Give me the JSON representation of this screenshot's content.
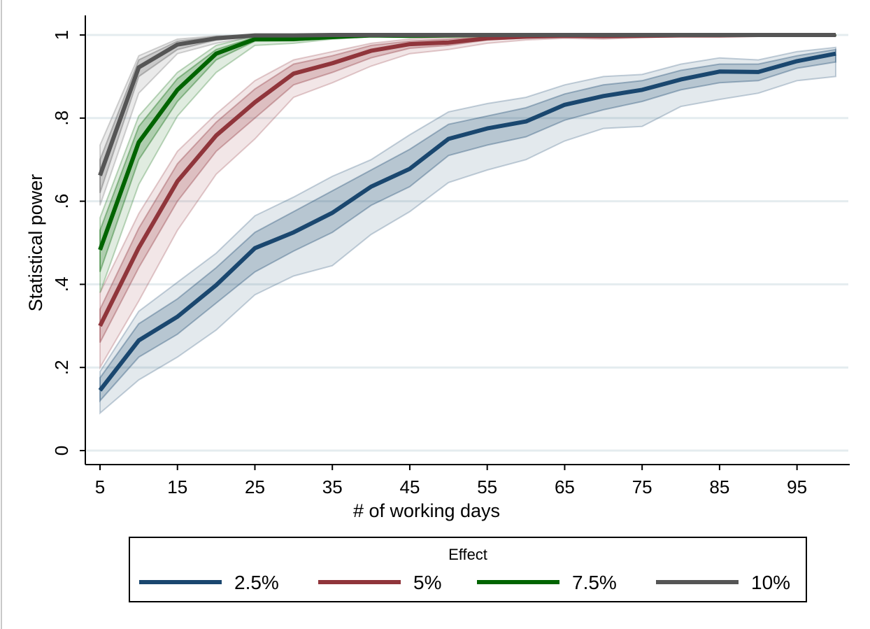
{
  "chart_data": {
    "type": "line",
    "xlabel": "# of working days",
    "ylabel": "Statistical power",
    "xlim": [
      5,
      100
    ],
    "ylim": [
      0,
      1
    ],
    "x_ticks": [
      5,
      15,
      25,
      35,
      45,
      55,
      65,
      75,
      85,
      95
    ],
    "x_tick_labels": [
      "5",
      "15",
      "25",
      "35",
      "45",
      "55",
      "65",
      "75",
      "85",
      "95"
    ],
    "y_ticks": [
      0,
      0.2,
      0.4,
      0.6,
      0.8,
      1
    ],
    "y_tick_labels": [
      "0",
      ".2",
      ".4",
      ".6",
      ".8",
      "1"
    ],
    "grid": true,
    "legend": {
      "title": "Effect",
      "position": "bottom"
    },
    "x": [
      5,
      10,
      15,
      20,
      25,
      30,
      35,
      40,
      45,
      50,
      55,
      60,
      65,
      70,
      75,
      80,
      85,
      90,
      95,
      100
    ],
    "series": [
      {
        "name": "2.5%",
        "color": "#1a476f",
        "values": [
          0.145,
          0.265,
          0.322,
          0.398,
          0.487,
          0.525,
          0.572,
          0.635,
          0.678,
          0.75,
          0.775,
          0.792,
          0.832,
          0.853,
          0.868,
          0.893,
          0.912,
          0.911,
          0.937,
          0.955
        ],
        "inner_lower": [
          0.12,
          0.225,
          0.28,
          0.355,
          0.43,
          0.48,
          0.525,
          0.59,
          0.635,
          0.71,
          0.735,
          0.755,
          0.795,
          0.82,
          0.84,
          0.868,
          0.885,
          0.89,
          0.92,
          0.935
        ],
        "inner_upper": [
          0.175,
          0.305,
          0.365,
          0.44,
          0.525,
          0.575,
          0.625,
          0.675,
          0.725,
          0.785,
          0.805,
          0.825,
          0.858,
          0.88,
          0.89,
          0.915,
          0.93,
          0.93,
          0.95,
          0.965
        ],
        "outer_lower": [
          0.09,
          0.17,
          0.225,
          0.29,
          0.375,
          0.42,
          0.445,
          0.52,
          0.575,
          0.645,
          0.675,
          0.7,
          0.745,
          0.775,
          0.78,
          0.828,
          0.845,
          0.86,
          0.89,
          0.9
        ],
        "outer_upper": [
          0.19,
          0.335,
          0.405,
          0.475,
          0.565,
          0.61,
          0.66,
          0.7,
          0.76,
          0.815,
          0.835,
          0.85,
          0.88,
          0.9,
          0.905,
          0.93,
          0.945,
          0.94,
          0.96,
          0.97
        ]
      },
      {
        "name": "5%",
        "color": "#90353b",
        "values": [
          0.3,
          0.488,
          0.648,
          0.758,
          0.838,
          0.907,
          0.932,
          0.962,
          0.978,
          0.982,
          0.992,
          0.996,
          0.998,
          0.997,
          0.998,
          0.999,
          0.999,
          1.0,
          1.0,
          1.0
        ],
        "inner_lower": [
          0.26,
          0.44,
          0.6,
          0.72,
          0.8,
          0.88,
          0.91,
          0.945,
          0.968,
          0.975,
          0.988,
          0.993,
          0.996,
          0.995,
          0.997,
          0.998,
          0.998,
          0.999,
          0.999,
          0.999
        ],
        "inner_upper": [
          0.34,
          0.535,
          0.69,
          0.79,
          0.87,
          0.93,
          0.95,
          0.975,
          0.985,
          0.99,
          0.996,
          0.998,
          0.999,
          0.999,
          0.999,
          1.0,
          1.0,
          1.0,
          1.0,
          1.0
        ],
        "outer_lower": [
          0.2,
          0.36,
          0.53,
          0.665,
          0.75,
          0.85,
          0.885,
          0.925,
          0.955,
          0.965,
          0.98,
          0.988,
          0.992,
          0.99,
          0.994,
          0.996,
          0.996,
          0.997,
          0.998,
          0.998
        ],
        "outer_upper": [
          0.38,
          0.57,
          0.72,
          0.81,
          0.89,
          0.94,
          0.96,
          0.98,
          0.99,
          0.995,
          0.998,
          1.0,
          1.0,
          1.0,
          1.0,
          1.0,
          1.0,
          1.0,
          1.0,
          1.0
        ]
      },
      {
        "name": "7.5%",
        "color": "#006400",
        "values": [
          0.483,
          0.742,
          0.868,
          0.955,
          0.99,
          0.99,
          0.995,
          0.999,
          0.998,
          0.999,
          1.0,
          1.0,
          1.0,
          1.0,
          1.0,
          1.0,
          1.0,
          1.0,
          1.0,
          1.0
        ],
        "inner_lower": [
          0.43,
          0.7,
          0.84,
          0.94,
          0.985,
          0.986,
          0.993,
          0.998,
          0.997,
          0.998,
          0.999,
          0.999,
          0.999,
          0.999,
          0.999,
          0.999,
          0.999,
          0.999,
          0.999,
          0.999
        ],
        "inner_upper": [
          0.53,
          0.78,
          0.895,
          0.965,
          0.995,
          0.995,
          0.998,
          1.0,
          1.0,
          1.0,
          1.0,
          1.0,
          1.0,
          1.0,
          1.0,
          1.0,
          1.0,
          1.0,
          1.0,
          1.0
        ],
        "outer_lower": [
          0.38,
          0.64,
          0.805,
          0.91,
          0.975,
          0.98,
          0.99,
          0.996,
          0.995,
          0.996,
          0.998,
          0.998,
          0.998,
          0.998,
          0.998,
          0.998,
          0.998,
          0.998,
          0.998,
          0.998
        ],
        "outer_upper": [
          0.56,
          0.805,
          0.91,
          0.975,
          0.998,
          0.998,
          1.0,
          1.0,
          1.0,
          1.0,
          1.0,
          1.0,
          1.0,
          1.0,
          1.0,
          1.0,
          1.0,
          1.0,
          1.0,
          1.0
        ]
      },
      {
        "name": "10%",
        "color": "#555555",
        "values": [
          0.662,
          0.922,
          0.977,
          0.992,
          0.999,
          0.999,
          1.0,
          1.0,
          1.0,
          1.0,
          1.0,
          1.0,
          1.0,
          1.0,
          1.0,
          1.0,
          1.0,
          1.0,
          1.0,
          1.0
        ],
        "inner_lower": [
          0.62,
          0.9,
          0.965,
          0.988,
          0.998,
          0.998,
          0.999,
          0.999,
          0.999,
          0.999,
          0.999,
          0.999,
          0.999,
          0.999,
          0.999,
          0.999,
          0.999,
          0.999,
          0.999,
          0.999
        ],
        "inner_upper": [
          0.7,
          0.94,
          0.985,
          0.996,
          1.0,
          1.0,
          1.0,
          1.0,
          1.0,
          1.0,
          1.0,
          1.0,
          1.0,
          1.0,
          1.0,
          1.0,
          1.0,
          1.0,
          1.0,
          1.0
        ],
        "outer_lower": [
          0.59,
          0.86,
          0.955,
          0.98,
          0.996,
          0.996,
          0.998,
          0.998,
          0.998,
          0.998,
          0.998,
          0.998,
          0.998,
          0.998,
          0.998,
          0.998,
          0.998,
          0.998,
          0.998,
          0.998
        ],
        "outer_upper": [
          0.735,
          0.95,
          0.99,
          0.998,
          1.0,
          1.0,
          1.0,
          1.0,
          1.0,
          1.0,
          1.0,
          1.0,
          1.0,
          1.0,
          1.0,
          1.0,
          1.0,
          1.0,
          1.0,
          1.0
        ]
      }
    ]
  }
}
